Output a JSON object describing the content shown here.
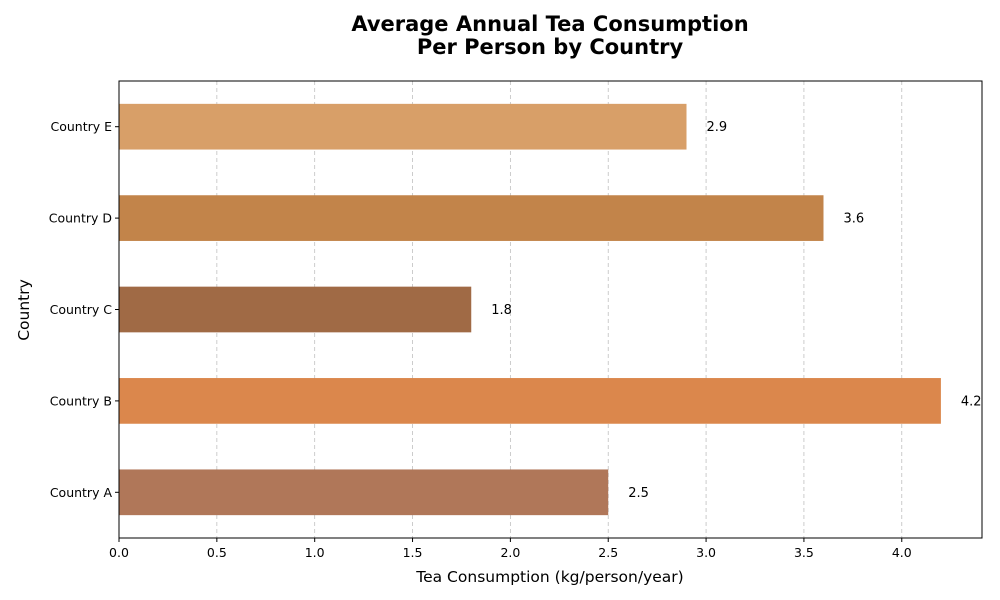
{
  "chart_data": {
    "type": "bar",
    "orientation": "horizontal",
    "title": [
      "Average Annual Tea Consumption",
      "Per Person by Country"
    ],
    "xlabel": "Tea Consumption (kg/person/year)",
    "ylabel": "Country",
    "categories": [
      "Country A",
      "Country B",
      "Country C",
      "Country D",
      "Country E"
    ],
    "values": [
      2.5,
      4.2,
      1.8,
      3.6,
      2.9
    ],
    "data_labels": [
      "2.5",
      "4.2",
      "1.8",
      "3.6",
      "2.9"
    ],
    "colors": [
      "#B07759",
      "#DB874C",
      "#A06A45",
      "#C2844A",
      "#D89F68"
    ],
    "xlim": [
      0,
      4.41
    ],
    "xticks": [
      0.0,
      0.5,
      1.0,
      1.5,
      2.0,
      2.5,
      3.0,
      3.5,
      4.0
    ],
    "xtick_labels": [
      "0.0",
      "0.5",
      "1.0",
      "1.5",
      "2.0",
      "2.5",
      "3.0",
      "3.5",
      "4.0"
    ],
    "grid": "x-dashed"
  }
}
